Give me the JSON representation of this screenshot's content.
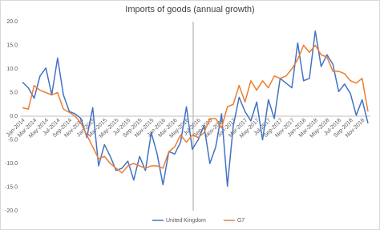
{
  "chart_data": {
    "type": "line",
    "title": "Imports of goods (annual growth)",
    "categories": [
      "Jan-2014",
      null,
      "Mar-2014",
      null,
      "May-2014",
      null,
      "Jul-2014",
      null,
      "Sep-2014",
      null,
      "Nov-2014",
      null,
      "Jan-2015",
      null,
      "Mar-2015",
      null,
      "May-2015",
      null,
      "Jul-2015",
      null,
      "Sep-2015",
      null,
      "Nov-2015",
      null,
      "Jan-2016",
      null,
      "Mar-2016",
      null,
      "May-2016",
      null,
      "Jul-2016",
      null,
      "Sep-2016",
      null,
      "Nov-2016",
      null,
      "Jan-2017",
      null,
      "Mar-2017",
      null,
      "May-2017",
      null,
      "Jul-2017",
      null,
      "Sep-2017",
      null,
      "Nov-2017",
      null,
      "Jan-2018",
      null,
      "Mar-2018",
      null,
      "May-2018",
      null,
      "Jul-2018",
      null,
      "Sep-2018",
      null,
      "Nov-2018",
      null
    ],
    "series": [
      {
        "name": "United Kingdom",
        "color": "#4472c4",
        "values": [
          7.2,
          6,
          3.8,
          8.5,
          10.2,
          4.5,
          12.3,
          4.5,
          1,
          0.5,
          -0.5,
          -4.5,
          1.8,
          -10.5,
          -6,
          -8.5,
          -11.5,
          -11,
          -9.5,
          -13.5,
          -8.5,
          -11.5,
          -3.5,
          -8,
          -14.5,
          -7.5,
          -8,
          -5.5,
          2,
          -7,
          -5,
          -2,
          -10,
          -6.5,
          0.5,
          -14.8,
          -2,
          4,
          1,
          -1,
          3,
          -5,
          3.5,
          -0.5,
          8,
          7,
          6,
          15.5,
          7.5,
          8,
          18,
          10.5,
          13,
          11,
          5.2,
          6.8,
          4.8,
          0.2,
          3.5,
          -1.5
        ]
      },
      {
        "name": "G7",
        "color": "#ed7d31",
        "values": [
          1.8,
          1.5,
          6.5,
          5.5,
          5,
          4.5,
          5,
          1.5,
          0.8,
          0,
          -1.5,
          -4,
          -6.5,
          -9,
          -8.5,
          -10,
          -11,
          -12,
          -10.5,
          -10,
          -10.5,
          -11,
          -10.5,
          -10.5,
          -11,
          -7.5,
          -6.5,
          -4,
          -5.5,
          -4,
          -4.5,
          -3.5,
          -0.5,
          -0.5,
          -2.5,
          2,
          2.5,
          6.5,
          3,
          7.5,
          5.5,
          7.5,
          6,
          8.5,
          8,
          8.5,
          10,
          12,
          15,
          13.5,
          15,
          13,
          12.5,
          9.5,
          9.5,
          9,
          7.5,
          7,
          8,
          1
        ]
      }
    ],
    "ylim": [
      -20,
      20
    ],
    "yticks": [
      {
        "value": -20,
        "label": "-20.0"
      },
      {
        "value": -15,
        "label": "-15.0"
      },
      {
        "value": -10,
        "label": "-10.0"
      },
      {
        "value": -5,
        "label": "-5.0"
      },
      {
        "value": 0,
        "label": "0.0"
      },
      {
        "value": 5,
        "label": "5.0"
      },
      {
        "value": 10,
        "label": "10.0"
      },
      {
        "value": 15,
        "label": "15.0"
      },
      {
        "value": 20,
        "label": "20.0"
      }
    ],
    "grid": false,
    "legend": "bottom"
  }
}
